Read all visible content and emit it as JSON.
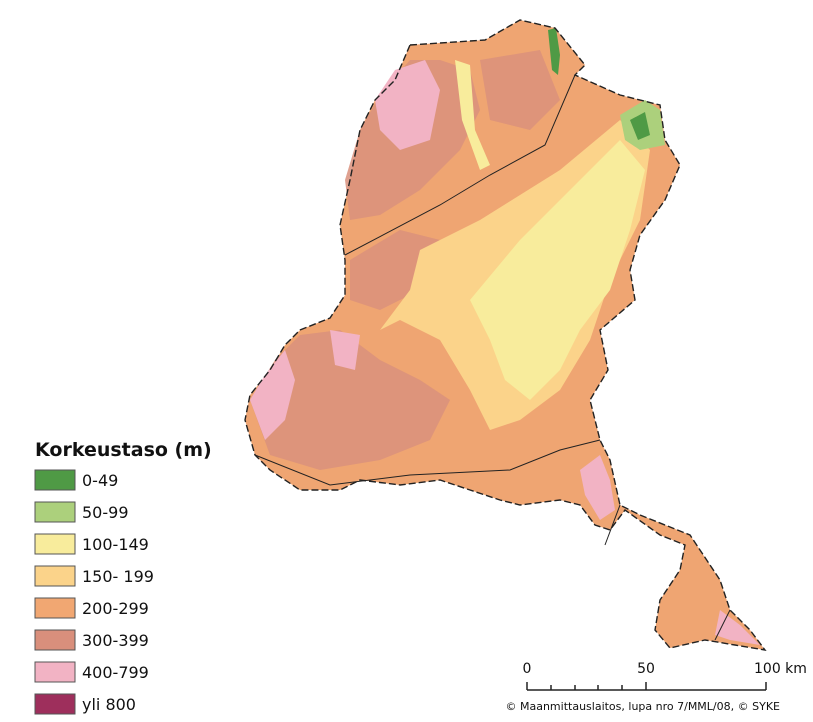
{
  "legend": {
    "title": "Korkeustaso (m)",
    "items": [
      {
        "label": "0-49",
        "color": "#4f9a45"
      },
      {
        "label": "50-99",
        "color": "#acd07c"
      },
      {
        "label": "100-149",
        "color": "#f8ec9c"
      },
      {
        "label": "150- 199",
        "color": "#fbd38a"
      },
      {
        "label": "200-299",
        "color": "#f1a772"
      },
      {
        "label": "300-399",
        "color": "#d98f7c"
      },
      {
        "label": "400-799",
        "color": "#f2b3c4"
      },
      {
        "label": "yli 800",
        "color": "#9e2f5c"
      }
    ]
  },
  "scale_bar": {
    "labels": [
      "0",
      "50",
      "100 km"
    ]
  },
  "copyright": "© Maanmittauslaitos, lupa nro 7/MML/08, © SYKE"
}
